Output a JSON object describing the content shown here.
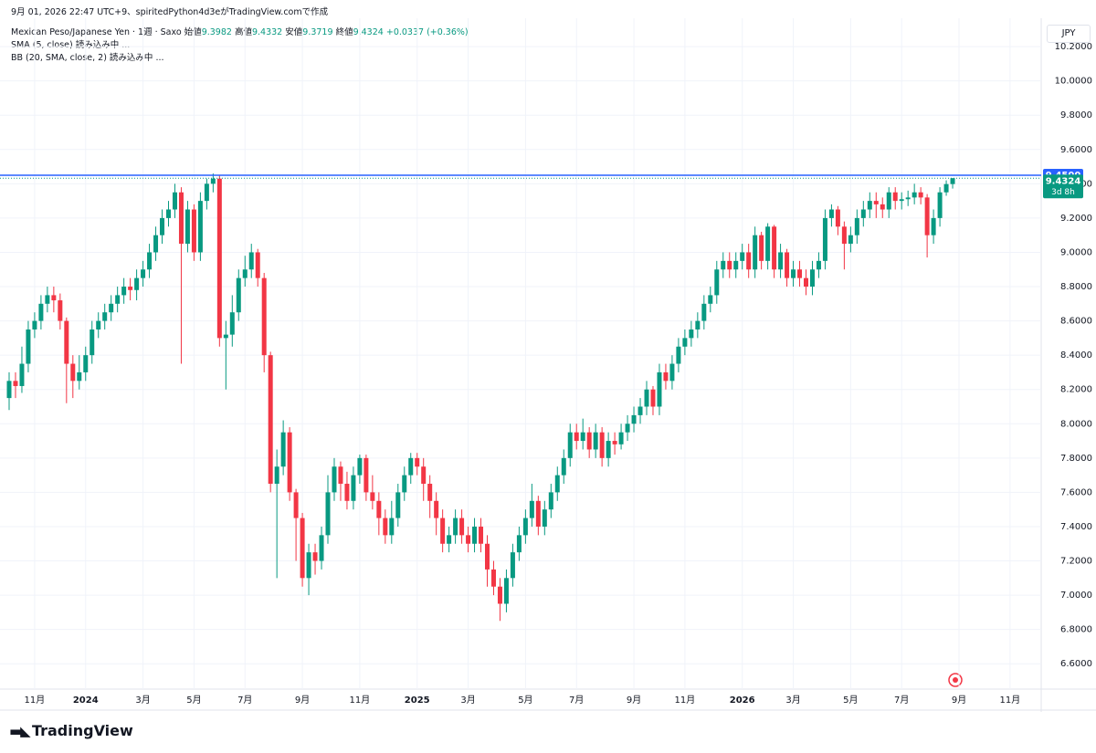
{
  "chart_data": {
    "type": "candlestick",
    "caption": "9月 01, 2026 22:47 UTC+9、spiritedPython4d3eがTradingView.comで作成",
    "title": "Mexican Peso/Japanese Yen · 1週 · Saxo",
    "ohlc_labels": [
      "始値",
      "高値",
      "安値",
      "終値"
    ],
    "change_label": "+0.0337 (+0.36%)",
    "indicators": [
      "SMA (5, close) 読み込み中 ...",
      "BB (20, SMA, close, 2) 読み込み中 ..."
    ],
    "currency": "JPY",
    "brand": "TradingView",
    "countdown": "3d 8h",
    "price_line": {
      "value": 9.45,
      "label": "9.4500"
    },
    "last_label": "9.4324",
    "up_color": "#089981",
    "down_color": "#f23645",
    "line_color": "#2962ff",
    "grid": true,
    "categories": [
      null,
      null,
      null,
      null,
      "11月",
      null,
      null,
      null,
      null,
      null,
      null,
      null,
      "2024",
      null,
      null,
      null,
      null,
      null,
      null,
      null,
      null,
      "3月",
      null,
      null,
      null,
      null,
      null,
      null,
      null,
      "5月",
      null,
      null,
      null,
      null,
      null,
      null,
      null,
      "7月",
      null,
      null,
      null,
      null,
      null,
      null,
      null,
      null,
      "9月",
      null,
      null,
      null,
      null,
      null,
      null,
      null,
      null,
      "11月",
      null,
      null,
      null,
      null,
      null,
      null,
      null,
      null,
      "2025",
      null,
      null,
      null,
      null,
      null,
      null,
      null,
      "3月",
      null,
      null,
      null,
      null,
      null,
      null,
      null,
      null,
      "5月",
      null,
      null,
      null,
      null,
      null,
      null,
      null,
      "7月",
      null,
      null,
      null,
      null,
      null,
      null,
      null,
      null,
      "9月",
      null,
      null,
      null,
      null,
      null,
      null,
      null,
      "11月",
      null,
      null,
      null,
      null,
      null,
      null,
      null,
      null,
      "2026",
      null,
      null,
      null,
      null,
      null,
      null,
      null,
      "3月",
      null,
      null,
      null,
      null,
      null,
      null,
      null,
      null,
      "5月",
      null,
      null,
      null,
      null,
      null,
      null,
      null,
      "7月",
      null,
      null,
      null,
      null,
      null,
      null,
      null,
      null,
      "9月",
      null,
      null,
      null,
      null,
      null,
      null,
      null,
      "11月"
    ],
    "open": [
      8.15,
      8.25,
      8.22,
      8.35,
      8.55,
      8.6,
      8.7,
      8.75,
      8.72,
      8.6,
      8.35,
      8.25,
      8.3,
      8.4,
      8.55,
      8.6,
      8.65,
      8.7,
      8.75,
      8.8,
      8.78,
      8.85,
      8.9,
      9.0,
      9.1,
      9.2,
      9.25,
      9.35,
      9.05,
      9.25,
      9.0,
      9.3,
      9.4,
      9.43,
      8.5,
      8.52,
      8.65,
      8.85,
      8.9,
      9.0,
      8.85,
      8.4,
      7.65,
      7.75,
      7.95,
      7.6,
      7.45,
      7.1,
      7.25,
      7.2,
      7.35,
      7.6,
      7.75,
      7.65,
      7.55,
      7.7,
      7.8,
      7.6,
      7.55,
      7.45,
      7.35,
      7.45,
      7.6,
      7.7,
      7.8,
      7.75,
      7.65,
      7.55,
      7.45,
      7.3,
      7.35,
      7.45,
      7.35,
      7.3,
      7.4,
      7.3,
      7.15,
      7.05,
      6.95,
      7.1,
      7.25,
      7.35,
      7.45,
      7.55,
      7.4,
      7.5,
      7.6,
      7.7,
      7.8,
      7.95,
      7.9,
      7.95,
      7.85,
      7.95,
      7.8,
      7.9,
      7.88,
      7.95,
      8.0,
      8.05,
      8.1,
      8.2,
      8.1,
      8.3,
      8.25,
      8.35,
      8.45,
      8.5,
      8.55,
      8.6,
      8.7,
      8.75,
      8.9,
      8.95,
      8.9,
      8.95,
      9.0,
      8.9,
      9.1,
      8.95,
      9.15,
      8.9,
      9.0,
      8.85,
      8.9,
      8.85,
      8.8,
      8.9,
      8.95,
      9.2,
      9.25,
      9.15,
      9.05,
      9.1,
      9.2,
      9.25,
      9.3,
      9.28,
      9.25,
      9.35,
      9.3,
      9.31,
      9.32,
      9.35,
      9.32,
      9.1,
      9.2,
      9.35,
      9.3982,
      null,
      null,
      null,
      null,
      null,
      null,
      null,
      null,
      null
    ],
    "high": [
      8.3,
      8.3,
      8.45,
      8.6,
      8.65,
      8.75,
      8.8,
      8.8,
      8.76,
      8.62,
      8.4,
      8.4,
      8.45,
      8.6,
      8.65,
      8.7,
      8.75,
      8.8,
      8.85,
      8.85,
      8.9,
      8.95,
      9.05,
      9.15,
      9.25,
      9.3,
      9.4,
      9.38,
      9.3,
      9.28,
      9.35,
      9.43,
      9.46,
      9.45,
      8.6,
      8.75,
      8.9,
      8.98,
      9.05,
      9.02,
      8.88,
      8.42,
      7.85,
      8.02,
      7.98,
      7.62,
      7.48,
      7.3,
      7.3,
      7.4,
      7.7,
      7.8,
      7.78,
      7.72,
      7.75,
      7.82,
      7.82,
      7.7,
      7.6,
      7.5,
      7.55,
      7.65,
      7.75,
      7.83,
      7.83,
      7.8,
      7.7,
      7.6,
      7.5,
      7.4,
      7.5,
      7.5,
      7.4,
      7.45,
      7.45,
      7.35,
      7.2,
      7.1,
      7.15,
      7.3,
      7.4,
      7.5,
      7.65,
      7.58,
      7.55,
      7.65,
      7.75,
      7.85,
      8.0,
      8.0,
      8.03,
      7.98,
      8.0,
      7.98,
      7.95,
      7.95,
      8.0,
      8.05,
      8.1,
      8.15,
      8.25,
      8.22,
      8.35,
      8.35,
      8.4,
      8.5,
      8.55,
      8.6,
      8.65,
      8.75,
      8.8,
      8.95,
      9.0,
      9.0,
      9.0,
      9.05,
      9.05,
      9.15,
      9.12,
      9.17,
      9.16,
      9.05,
      9.02,
      8.95,
      8.95,
      8.9,
      8.95,
      9.0,
      9.25,
      9.28,
      9.27,
      9.18,
      9.15,
      9.25,
      9.3,
      9.35,
      9.35,
      9.32,
      9.38,
      9.38,
      9.35,
      9.36,
      9.4,
      9.38,
      9.34,
      9.25,
      9.38,
      9.42,
      9.4332,
      null,
      null,
      null,
      null,
      null,
      null,
      null,
      null,
      null
    ],
    "low": [
      8.08,
      8.15,
      8.18,
      8.3,
      8.5,
      8.55,
      8.65,
      8.65,
      8.55,
      8.12,
      8.15,
      8.2,
      8.25,
      8.35,
      8.5,
      8.55,
      8.6,
      8.65,
      8.7,
      8.72,
      8.72,
      8.8,
      8.85,
      8.95,
      9.05,
      9.15,
      9.2,
      8.35,
      9.0,
      8.95,
      8.95,
      9.25,
      9.35,
      8.45,
      8.2,
      8.45,
      8.6,
      8.8,
      8.85,
      8.8,
      8.3,
      7.6,
      7.1,
      7.7,
      7.55,
      7.2,
      7.05,
      7.0,
      7.12,
      7.15,
      7.3,
      7.55,
      7.55,
      7.5,
      7.5,
      7.65,
      7.55,
      7.5,
      7.35,
      7.3,
      7.3,
      7.4,
      7.55,
      7.65,
      7.7,
      7.55,
      7.45,
      7.35,
      7.25,
      7.25,
      7.3,
      7.3,
      7.25,
      7.25,
      7.25,
      7.05,
      7.0,
      6.85,
      6.9,
      7.05,
      7.2,
      7.3,
      7.4,
      7.35,
      7.35,
      7.45,
      7.55,
      7.65,
      7.75,
      7.85,
      7.85,
      7.8,
      7.8,
      7.75,
      7.75,
      7.82,
      7.85,
      7.9,
      7.95,
      8.0,
      8.05,
      8.05,
      8.05,
      8.2,
      8.2,
      8.3,
      8.4,
      8.45,
      8.5,
      8.55,
      8.65,
      8.7,
      8.85,
      8.85,
      8.85,
      8.9,
      8.85,
      8.85,
      8.9,
      8.9,
      8.85,
      8.85,
      8.8,
      8.8,
      8.8,
      8.75,
      8.75,
      8.85,
      8.9,
      9.15,
      9.1,
      8.9,
      9.0,
      9.05,
      9.15,
      9.2,
      9.2,
      9.2,
      9.2,
      9.25,
      9.25,
      9.27,
      9.28,
      9.28,
      8.97,
      9.05,
      9.15,
      9.33,
      9.3719,
      null,
      null,
      null,
      null,
      null,
      null,
      null,
      null,
      null
    ],
    "close": [
      8.25,
      8.22,
      8.35,
      8.55,
      8.6,
      8.7,
      8.75,
      8.72,
      8.6,
      8.35,
      8.25,
      8.3,
      8.4,
      8.55,
      8.6,
      8.65,
      8.7,
      8.75,
      8.8,
      8.78,
      8.85,
      8.9,
      9.0,
      9.1,
      9.2,
      9.25,
      9.35,
      9.05,
      9.25,
      9.0,
      9.3,
      9.4,
      9.43,
      8.5,
      8.52,
      8.65,
      8.85,
      8.9,
      9.0,
      8.85,
      8.4,
      7.65,
      7.75,
      7.95,
      7.6,
      7.45,
      7.1,
      7.25,
      7.2,
      7.35,
      7.6,
      7.75,
      7.65,
      7.55,
      7.7,
      7.8,
      7.6,
      7.55,
      7.45,
      7.35,
      7.45,
      7.6,
      7.7,
      7.8,
      7.75,
      7.65,
      7.55,
      7.45,
      7.3,
      7.35,
      7.45,
      7.35,
      7.3,
      7.4,
      7.3,
      7.15,
      7.05,
      6.95,
      7.1,
      7.25,
      7.35,
      7.45,
      7.55,
      7.4,
      7.5,
      7.6,
      7.7,
      7.8,
      7.95,
      7.9,
      7.95,
      7.85,
      7.95,
      7.8,
      7.9,
      7.88,
      7.95,
      8.0,
      8.05,
      8.1,
      8.2,
      8.1,
      8.3,
      8.25,
      8.35,
      8.45,
      8.5,
      8.55,
      8.6,
      8.7,
      8.75,
      8.9,
      8.95,
      8.9,
      8.95,
      9.0,
      8.9,
      9.1,
      8.95,
      9.15,
      8.9,
      9.0,
      8.85,
      8.9,
      8.85,
      8.8,
      8.9,
      8.95,
      9.2,
      9.25,
      9.15,
      9.05,
      9.1,
      9.2,
      9.25,
      9.3,
      9.28,
      9.25,
      9.35,
      9.3,
      9.31,
      9.32,
      9.35,
      9.32,
      9.1,
      9.2,
      9.35,
      9.3982,
      9.4324,
      null,
      null,
      null,
      null,
      null,
      null,
      null,
      null,
      null
    ],
    "ylim": [
      6.4521,
      10.3655
    ],
    "yticks": [
      {
        "value": 6.6,
        "label": "6.6000"
      },
      {
        "value": 6.8,
        "label": "6.8000"
      },
      {
        "value": 7.0,
        "label": "7.0000"
      },
      {
        "value": 7.2,
        "label": "7.2000"
      },
      {
        "value": 7.4,
        "label": "7.4000"
      },
      {
        "value": 7.6,
        "label": "7.6000"
      },
      {
        "value": 7.8,
        "label": "7.8000"
      },
      {
        "value": 8.0,
        "label": "8.0000"
      },
      {
        "value": 8.2,
        "label": "8.2000"
      },
      {
        "value": 8.4,
        "label": "8.4000"
      },
      {
        "value": 8.6,
        "label": "8.6000"
      },
      {
        "value": 8.8,
        "label": "8.8000"
      },
      {
        "value": 9.0,
        "label": "9.0000"
      },
      {
        "value": 9.2,
        "label": "9.2000"
      },
      {
        "value": 9.4,
        "label": "9.4000"
      },
      {
        "value": 9.6,
        "label": "9.6000"
      },
      {
        "value": 9.8,
        "label": "9.8000"
      },
      {
        "value": 10.0,
        "label": "10.0000"
      },
      {
        "value": 10.2,
        "label": "10.2000"
      }
    ]
  }
}
